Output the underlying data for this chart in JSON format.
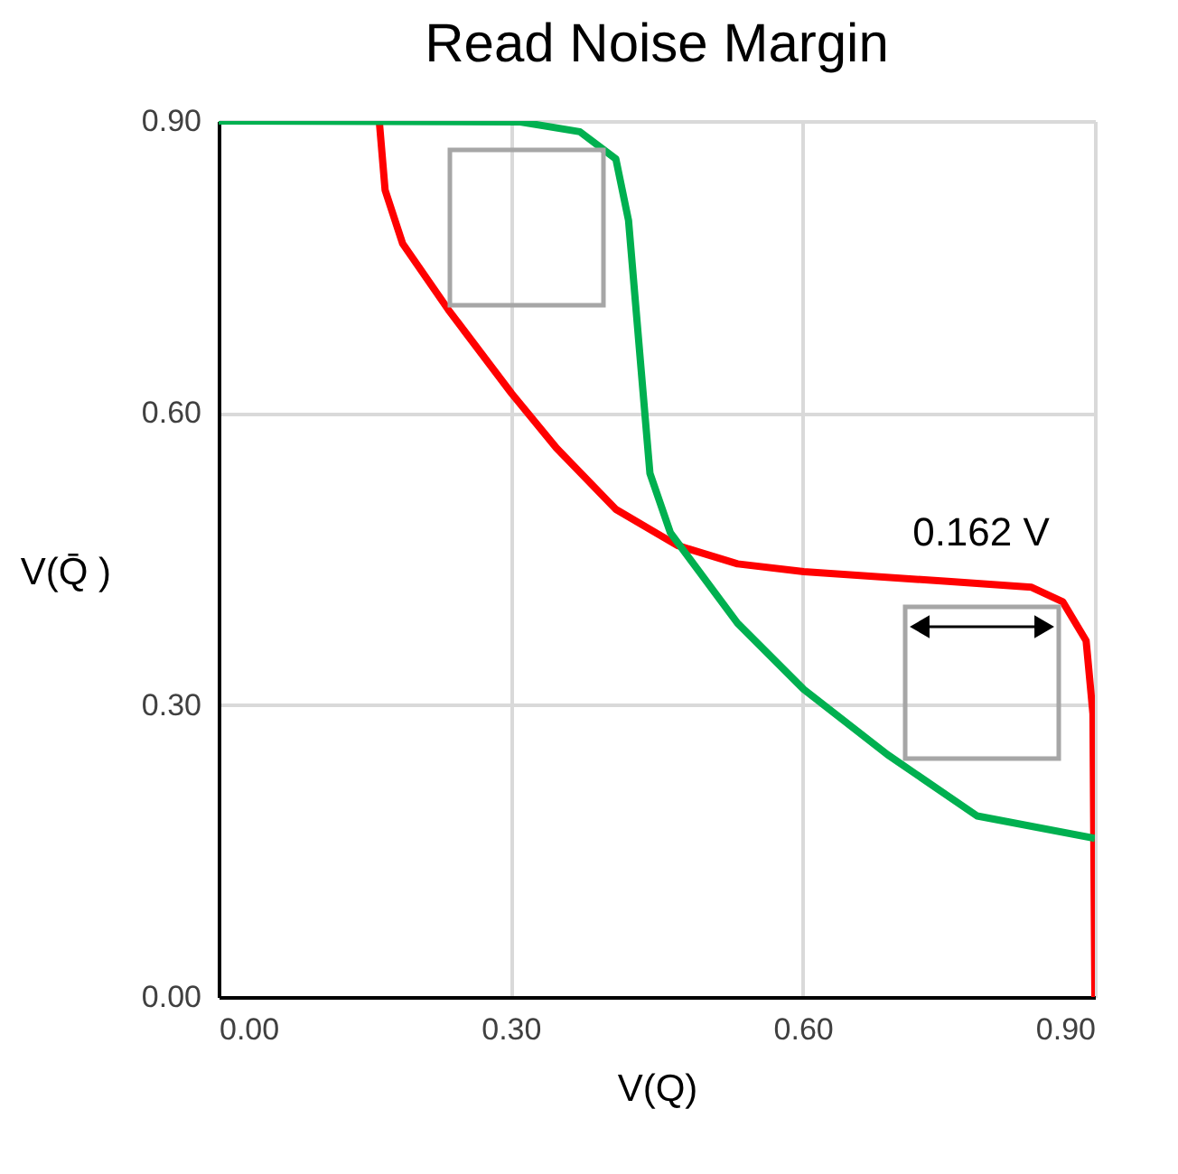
{
  "chart_data": {
    "type": "line",
    "title": "Read Noise Margin",
    "xlabel": "V(Q)",
    "ylabel": "V(Q̄ )",
    "xlim": [
      0,
      0.9
    ],
    "ylim": [
      0,
      0.9
    ],
    "xticks": [
      {
        "value": 0,
        "label": "0.00"
      },
      {
        "value": 0.3,
        "label": "0.30"
      },
      {
        "value": 0.6,
        "label": "0.60"
      },
      {
        "value": 0.9,
        "label": "0.90"
      }
    ],
    "yticks": [
      {
        "value": 0,
        "label": "0.00"
      },
      {
        "value": 0.3,
        "label": "0.30"
      },
      {
        "value": 0.6,
        "label": "0.60"
      },
      {
        "value": 0.9,
        "label": "0.90"
      }
    ],
    "grid": true,
    "line_style": "solid",
    "marker": "none",
    "series": [
      {
        "color": "#ff0000",
        "x": [
          0.165,
          0.171,
          0.189,
          0.236,
          0.301,
          0.347,
          0.408,
          0.471,
          0.533,
          0.601,
          0.749,
          0.835,
          0.867,
          0.891,
          0.898,
          0.9
        ],
        "values": [
          0.9,
          0.829,
          0.774,
          0.706,
          0.62,
          0.564,
          0.501,
          0.464,
          0.445,
          0.437,
          0.427,
          0.421,
          0.406,
          0.366,
          0.291,
          0
        ]
      },
      {
        "color": "#00b050",
        "x": [
          0,
          0.31,
          0.371,
          0.408,
          0.421,
          0.434,
          0.443,
          0.464,
          0.533,
          0.601,
          0.687,
          0.779,
          0.9
        ],
        "values": [
          0.9,
          0.899,
          0.889,
          0.861,
          0.798,
          0.644,
          0.538,
          0.477,
          0.384,
          0.316,
          0.249,
          0.186,
          0.163
        ]
      }
    ],
    "annotations": [
      "0.162 V"
    ]
  }
}
